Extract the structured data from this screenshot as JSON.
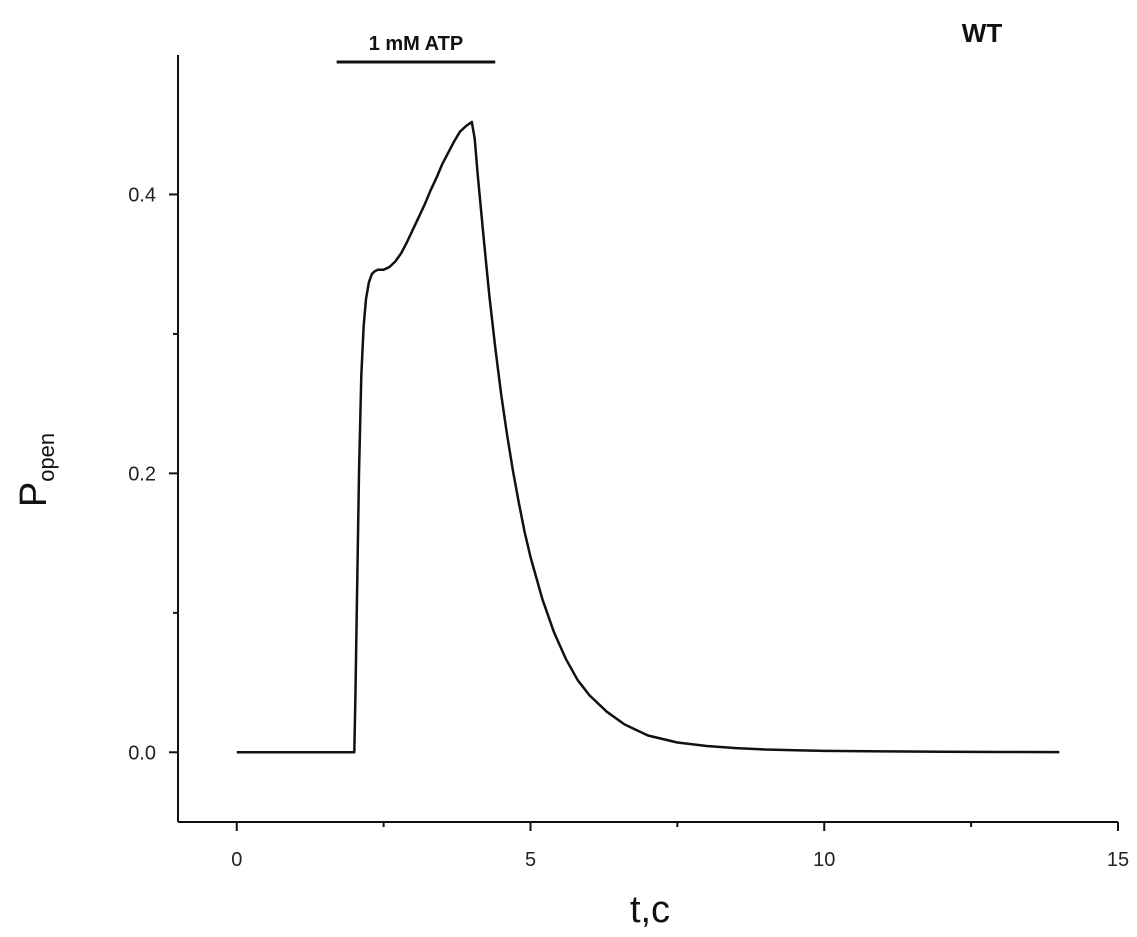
{
  "chart_data": {
    "type": "line",
    "xlabel": "t,c",
    "ylabel_main": "P",
    "ylabel_sub": "open",
    "corner_label": "WT",
    "stimulus": {
      "label": "1 mM ATP",
      "x_start": 1.7,
      "x_end": 4.4
    },
    "xlim": [
      -1,
      15
    ],
    "ylim": [
      -0.05,
      0.5
    ],
    "x_ticks": [
      0,
      5,
      10,
      15
    ],
    "x_tick_labels": [
      "0",
      "5",
      "10",
      "15"
    ],
    "y_ticks": [
      0.0,
      0.2,
      0.4
    ],
    "y_tick_labels": [
      "0.0",
      "0.2",
      "0.4"
    ],
    "grid": false,
    "line_color": "#111111",
    "series": [
      {
        "x": [
          0,
          2.0,
          2.02,
          2.05,
          2.08,
          2.12,
          2.16,
          2.2,
          2.25,
          2.3,
          2.35,
          2.4,
          2.45,
          2.5,
          2.6,
          2.7,
          2.8,
          2.9,
          3.0,
          3.1,
          3.2,
          3.3,
          3.4,
          3.5,
          3.6,
          3.7,
          3.8,
          3.9,
          4.0,
          4.05,
          4.1,
          4.2,
          4.3,
          4.4,
          4.5,
          4.6,
          4.7,
          4.8,
          4.9,
          5.0,
          5.2,
          5.4,
          5.6,
          5.8,
          6.0,
          6.3,
          6.6,
          7.0,
          7.5,
          8.0,
          8.5,
          9.0,
          9.5,
          10.0,
          11.0,
          12.0,
          13.0,
          14.0
        ],
        "y": [
          0.0,
          0.0,
          0.04,
          0.12,
          0.2,
          0.27,
          0.305,
          0.325,
          0.337,
          0.343,
          0.345,
          0.346,
          0.346,
          0.346,
          0.348,
          0.352,
          0.358,
          0.366,
          0.375,
          0.384,
          0.393,
          0.403,
          0.412,
          0.422,
          0.43,
          0.438,
          0.445,
          0.449,
          0.452,
          0.44,
          0.415,
          0.37,
          0.327,
          0.29,
          0.257,
          0.228,
          0.202,
          0.179,
          0.158,
          0.14,
          0.11,
          0.086,
          0.067,
          0.052,
          0.041,
          0.029,
          0.02,
          0.012,
          0.007,
          0.0045,
          0.003,
          0.002,
          0.0015,
          0.001,
          0.0006,
          0.0004,
          0.0002,
          0.0001
        ]
      }
    ]
  }
}
